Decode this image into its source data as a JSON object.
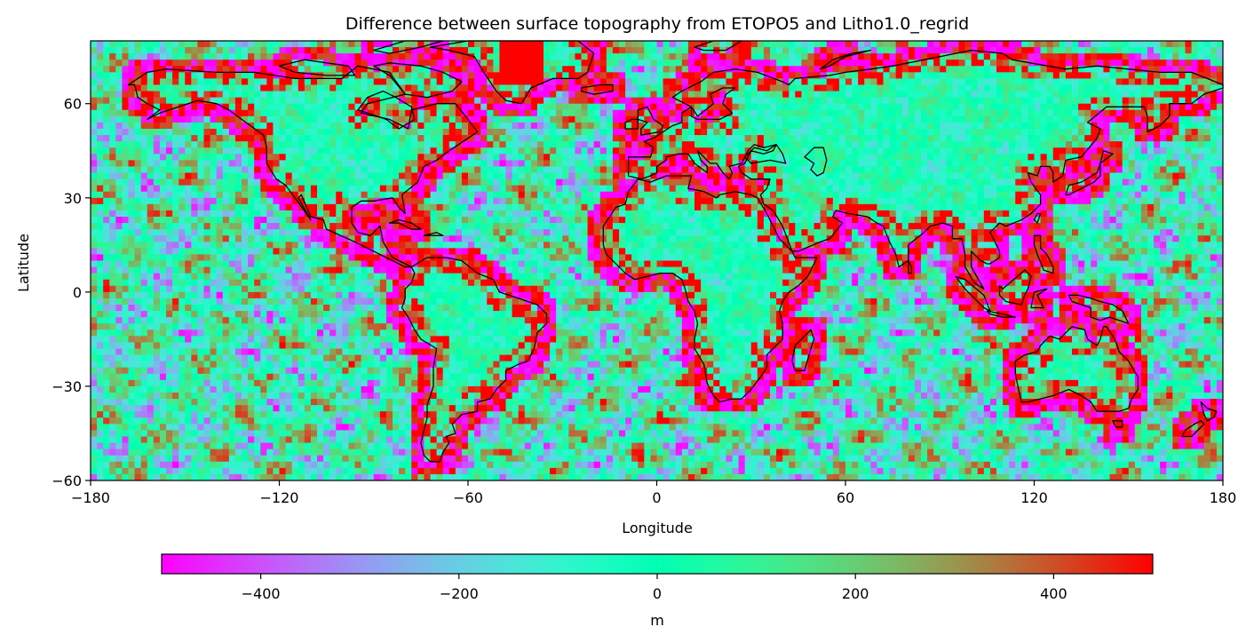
{
  "chart_data": {
    "type": "heatmap",
    "title": "Difference between surface topography from ETOPO5 and Litho1.0_regrid",
    "xlabel": "Longitude",
    "ylabel": "Latitude",
    "xlim": [
      -180,
      180
    ],
    "ylim": [
      -60,
      80
    ],
    "x_ticks": [
      "−180",
      "−120",
      "−60",
      "0",
      "60",
      "120",
      "180"
    ],
    "x_tick_values": [
      -180,
      -120,
      -60,
      0,
      60,
      120,
      180
    ],
    "y_ticks": [
      "−60",
      "−30",
      "0",
      "30",
      "60"
    ],
    "y_tick_values": [
      -60,
      -30,
      0,
      30,
      60
    ],
    "colormap": "rainbow",
    "vmin": -500,
    "vmax": 500,
    "colorbar": {
      "label": "m",
      "orientation": "horizontal",
      "ticks": [
        "−400",
        "−200",
        "0",
        "200",
        "400"
      ],
      "tick_values": [
        -400,
        -200,
        0,
        200,
        400
      ]
    },
    "grid_resolution_deg": 2,
    "overlay": "coastlines",
    "colors": {
      "min": "#8000ff",
      "mid": "#80ffb4",
      "max": "#ff0000",
      "coastline": "#000000"
    }
  }
}
